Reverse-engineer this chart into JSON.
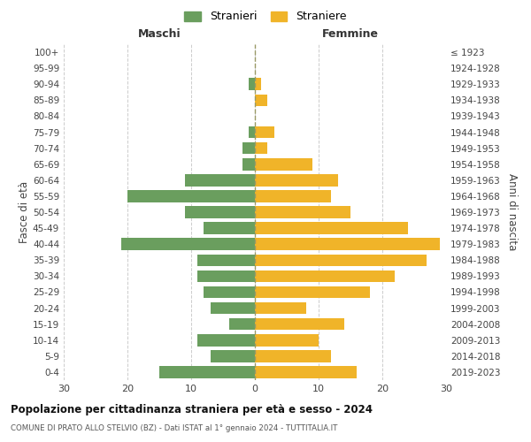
{
  "age_groups": [
    "0-4",
    "5-9",
    "10-14",
    "15-19",
    "20-24",
    "25-29",
    "30-34",
    "35-39",
    "40-44",
    "45-49",
    "50-54",
    "55-59",
    "60-64",
    "65-69",
    "70-74",
    "75-79",
    "80-84",
    "85-89",
    "90-94",
    "95-99",
    "100+"
  ],
  "birth_years": [
    "2019-2023",
    "2014-2018",
    "2009-2013",
    "2004-2008",
    "1999-2003",
    "1994-1998",
    "1989-1993",
    "1984-1988",
    "1979-1983",
    "1974-1978",
    "1969-1973",
    "1964-1968",
    "1959-1963",
    "1954-1958",
    "1949-1953",
    "1944-1948",
    "1939-1943",
    "1934-1938",
    "1929-1933",
    "1924-1928",
    "≤ 1923"
  ],
  "males": [
    15,
    7,
    9,
    4,
    7,
    8,
    9,
    9,
    21,
    8,
    11,
    20,
    11,
    2,
    2,
    1,
    0,
    0,
    1,
    0,
    0
  ],
  "females": [
    16,
    12,
    10,
    14,
    8,
    18,
    22,
    27,
    29,
    24,
    15,
    12,
    13,
    9,
    2,
    3,
    0,
    2,
    1,
    0,
    0
  ],
  "male_color": "#6a9e5e",
  "female_color": "#f0b429",
  "male_label": "Stranieri",
  "female_label": "Straniere",
  "title": "Popolazione per cittadinanza straniera per età e sesso - 2024",
  "subtitle": "COMUNE DI PRATO ALLO STELVIO (BZ) - Dati ISTAT al 1° gennaio 2024 - TUTTITALIA.IT",
  "header_left": "Maschi",
  "header_right": "Femmine",
  "ylabel_left": "Fasce di età",
  "ylabel_right": "Anni di nascita",
  "xlim": 30,
  "background_color": "#ffffff",
  "grid_color": "#cccccc"
}
